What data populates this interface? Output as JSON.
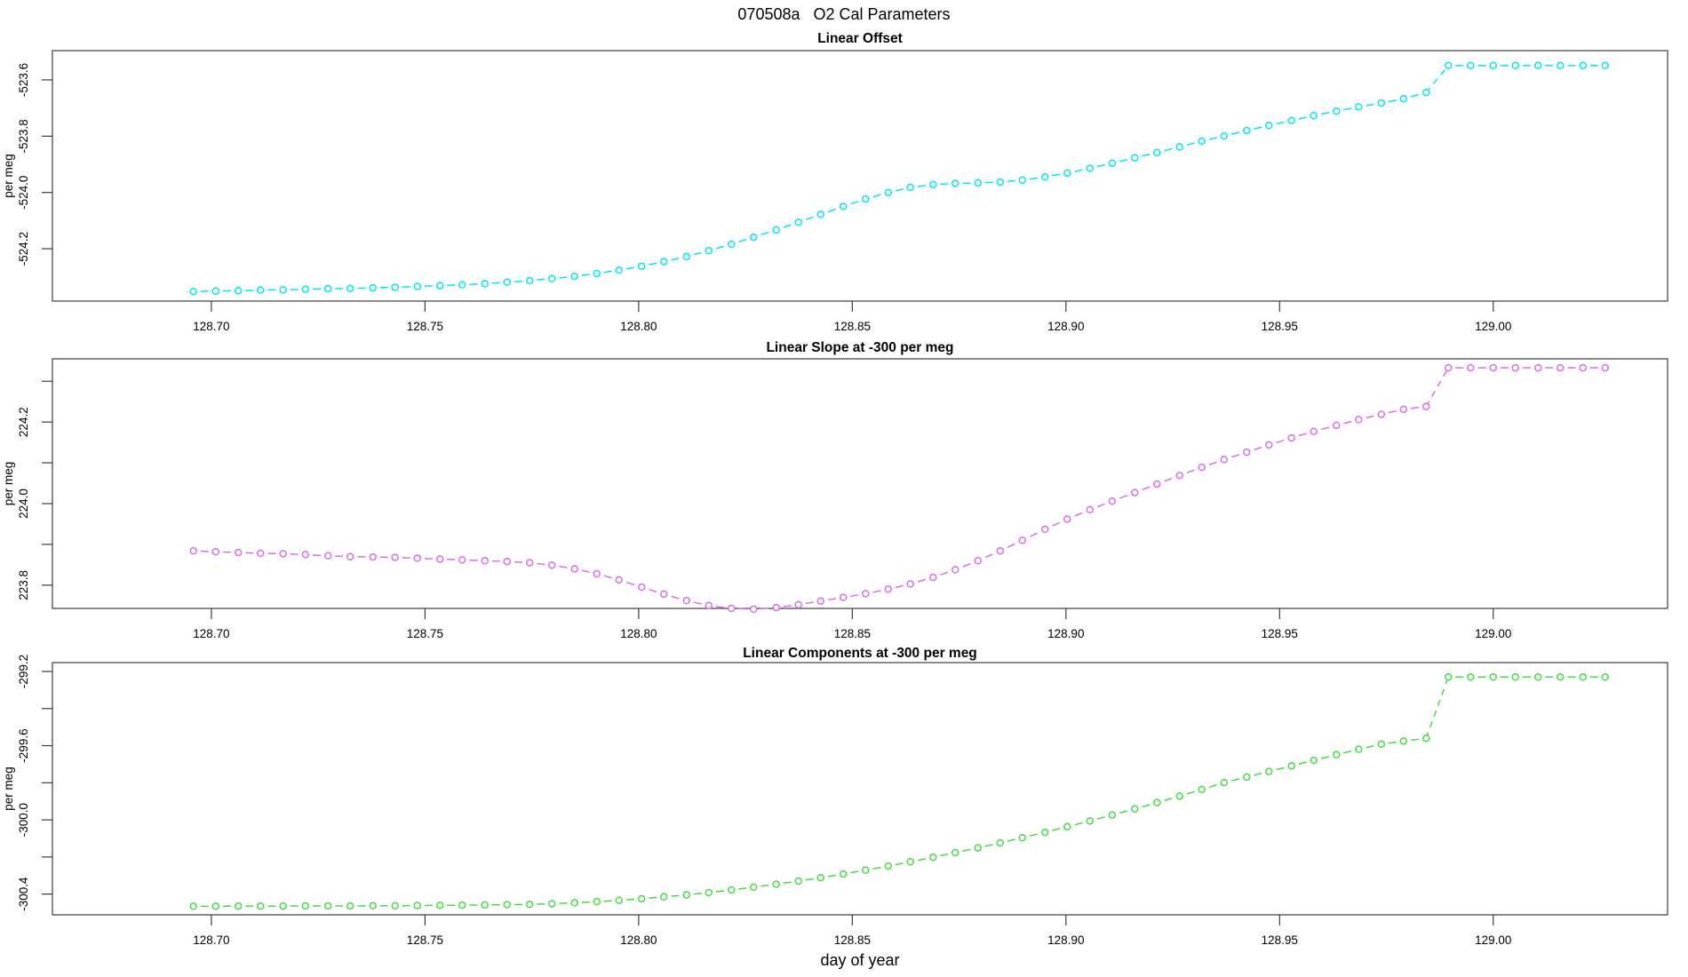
{
  "title": "070508a   O2 Cal Parameters",
  "axes": {
    "xlabel": "day of year",
    "ylabel": "per meg",
    "xlim": [
      128.6628,
      129.0408
    ],
    "xticks": [
      128.7,
      128.75,
      128.8,
      128.85,
      128.9,
      128.95,
      129.0
    ],
    "xtick_decimals": 2,
    "grid": "off",
    "axis_color": "#3c3c3c"
  },
  "x_days": [
    128.6958,
    128.701,
    128.7063,
    128.7115,
    128.7168,
    128.722,
    128.7273,
    128.7325,
    128.7378,
    128.743,
    128.7482,
    128.7535,
    128.7587,
    128.764,
    128.7692,
    128.7745,
    128.7797,
    128.785,
    128.7902,
    128.7954,
    128.8007,
    128.8059,
    128.8112,
    128.8164,
    128.8217,
    128.8269,
    128.8322,
    128.8374,
    128.8426,
    128.8479,
    128.8531,
    128.8584,
    128.8636,
    128.8689,
    128.8741,
    128.8794,
    128.8846,
    128.8898,
    128.8951,
    128.9003,
    128.9056,
    128.9108,
    128.9161,
    128.9213,
    128.9266,
    128.9318,
    128.937,
    128.9423,
    128.9475,
    128.9528,
    128.958,
    128.9633,
    128.9685,
    128.9738,
    128.979,
    128.9843,
    128.9895,
    128.9947,
    129.0,
    129.0052,
    129.0105,
    129.0157,
    129.021,
    129.0262
  ],
  "chart_data": [
    {
      "type": "line",
      "title": "Linear Offset",
      "color": "#00E8E8",
      "line_style": "dashed",
      "marker": "open-circle",
      "ylabel": "per meg",
      "ylim": [
        -524.386,
        -523.496
      ],
      "yticks_labeled": [
        -523.6,
        -523.8,
        -524.0,
        -524.2
      ],
      "yticks_minor": [],
      "ytick_decimals": 1,
      "x_ref": "x_days",
      "y": [
        -524.352,
        -524.35,
        -524.349,
        -524.347,
        -524.346,
        -524.344,
        -524.342,
        -524.341,
        -524.339,
        -524.337,
        -524.334,
        -524.331,
        -524.328,
        -524.324,
        -524.319,
        -524.313,
        -524.306,
        -524.298,
        -524.288,
        -524.276,
        -524.262,
        -524.246,
        -524.228,
        -524.207,
        -524.184,
        -524.159,
        -524.133,
        -524.106,
        -524.078,
        -524.05,
        -524.023,
        -524.0,
        -523.982,
        -523.972,
        -523.968,
        -523.966,
        -523.963,
        -523.956,
        -523.945,
        -523.931,
        -523.914,
        -523.896,
        -523.877,
        -523.858,
        -523.838,
        -523.818,
        -523.799,
        -523.78,
        -523.762,
        -523.744,
        -523.727,
        -523.711,
        -523.696,
        -523.682,
        -523.667,
        -523.645,
        -523.549,
        -523.549,
        -523.549,
        -523.549,
        -523.549,
        -523.549,
        -523.549,
        -523.549
      ]
    },
    {
      "type": "line",
      "title": "Linear Slope at -300 per meg",
      "color": "#D96FE8",
      "line_style": "dashed",
      "marker": "open-circle",
      "ylabel": "per meg",
      "ylim": [
        223.743,
        224.355
      ],
      "yticks_labeled": [
        224.2,
        224.0,
        223.8
      ],
      "yticks_minor": [
        224.3,
        224.1,
        223.9
      ],
      "ytick_decimals": 1,
      "x_ref": "x_days",
      "y": [
        223.884,
        223.882,
        223.88,
        223.878,
        223.877,
        223.875,
        223.872,
        223.87,
        223.869,
        223.868,
        223.866,
        223.864,
        223.862,
        223.86,
        223.858,
        223.855,
        223.849,
        223.84,
        223.828,
        223.813,
        223.795,
        223.778,
        223.762,
        223.75,
        223.743,
        223.741,
        223.745,
        223.752,
        223.761,
        223.77,
        223.779,
        223.79,
        223.803,
        223.819,
        223.838,
        223.86,
        223.884,
        223.91,
        223.937,
        223.962,
        223.985,
        224.006,
        224.027,
        224.048,
        224.069,
        224.089,
        224.108,
        224.126,
        224.144,
        224.161,
        224.177,
        224.192,
        224.206,
        224.219,
        224.231,
        224.238,
        224.333,
        224.333,
        224.333,
        224.333,
        224.333,
        224.333,
        224.333,
        224.333
      ]
    },
    {
      "type": "line",
      "title": "Linear Components at -300 per meg",
      "color": "#45DC45",
      "line_style": "dashed",
      "marker": "open-circle",
      "ylabel": "per meg",
      "ylim": [
        -300.512,
        -299.152
      ],
      "yticks_labeled": [
        -299.2,
        -299.6,
        -300.0,
        -300.4
      ],
      "yticks_minor": [
        -299.4,
        -299.8,
        -300.2
      ],
      "ytick_decimals": 1,
      "x_ref": "x_days",
      "y": [
        -300.466,
        -300.466,
        -300.465,
        -300.465,
        -300.465,
        -300.464,
        -300.464,
        -300.464,
        -300.463,
        -300.463,
        -300.462,
        -300.461,
        -300.46,
        -300.459,
        -300.457,
        -300.456,
        -300.452,
        -300.447,
        -300.441,
        -300.434,
        -300.425,
        -300.415,
        -300.404,
        -300.392,
        -300.378,
        -300.363,
        -300.347,
        -300.33,
        -300.312,
        -300.292,
        -300.271,
        -300.249,
        -300.226,
        -300.202,
        -300.177,
        -300.151,
        -300.124,
        -300.096,
        -300.067,
        -300.037,
        -300.006,
        -299.974,
        -299.941,
        -299.907,
        -299.872,
        -299.836,
        -299.799,
        -299.769,
        -299.739,
        -299.709,
        -299.679,
        -299.649,
        -299.619,
        -299.592,
        -299.575,
        -299.56,
        -299.23,
        -299.23,
        -299.23,
        -299.23,
        -299.23,
        -299.23,
        -299.23,
        -299.23
      ]
    }
  ]
}
